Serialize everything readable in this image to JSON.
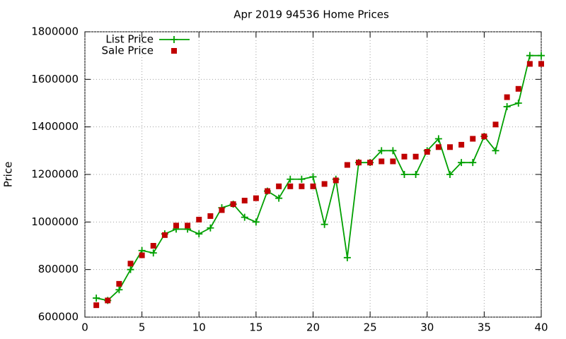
{
  "chart_data": {
    "type": "line",
    "title": "Apr 2019 94536 Home Prices",
    "y_label": "Price",
    "x": [
      1,
      2,
      3,
      4,
      5,
      6,
      7,
      8,
      9,
      10,
      11,
      12,
      13,
      14,
      15,
      16,
      17,
      18,
      19,
      20,
      21,
      22,
      23,
      24,
      25,
      26,
      27,
      28,
      29,
      30,
      31,
      32,
      33,
      34,
      35,
      36,
      37,
      38,
      39,
      40
    ],
    "series": [
      {
        "name": "List Price",
        "color": "#00a000",
        "line": true,
        "marker": "plus",
        "values": [
          680000,
          670000,
          715000,
          800000,
          880000,
          870000,
          950000,
          970000,
          970000,
          950000,
          975000,
          1060000,
          1075000,
          1020000,
          1000000,
          1130000,
          1100000,
          1180000,
          1180000,
          1190000,
          990000,
          1180000,
          850000,
          1250000,
          1250000,
          1300000,
          1300000,
          1200000,
          1200000,
          1300000,
          1350000,
          1200000,
          1250000,
          1250000,
          1360000,
          1300000,
          1485000,
          1500000,
          1700000,
          1700000
        ]
      },
      {
        "name": "Sale Price",
        "color": "#c00000",
        "line": false,
        "marker": "square",
        "values": [
          650000,
          670000,
          740000,
          825000,
          860000,
          900000,
          945000,
          985000,
          985000,
          1010000,
          1025000,
          1050000,
          1075000,
          1090000,
          1100000,
          1130000,
          1150000,
          1150000,
          1150000,
          1150000,
          1160000,
          1175000,
          1240000,
          1250000,
          1250000,
          1255000,
          1255000,
          1275000,
          1275000,
          1295000,
          1315000,
          1315000,
          1325000,
          1350000,
          1360000,
          1410000,
          1525000,
          1560000,
          1665000,
          1665000
        ]
      }
    ],
    "xlim": [
      0,
      40
    ],
    "xticks": [
      0,
      5,
      10,
      15,
      20,
      25,
      30,
      35,
      40
    ],
    "ylim": [
      600000,
      1800000
    ],
    "yticks": [
      600000,
      800000,
      1000000,
      1200000,
      1400000,
      1600000,
      1800000
    ],
    "grid": true,
    "legend": "top-left"
  }
}
